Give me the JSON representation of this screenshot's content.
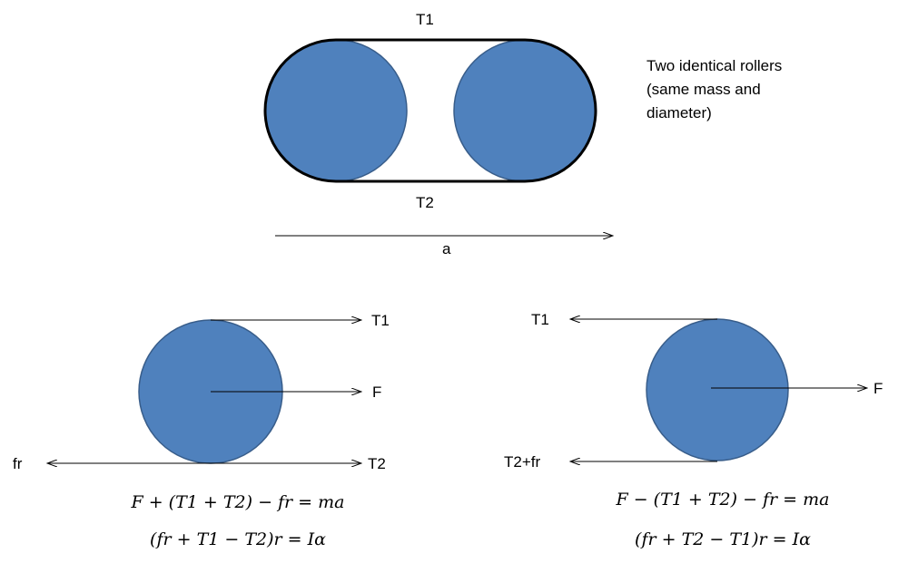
{
  "colors": {
    "roller_fill": "#4f81bd",
    "roller_stroke": "#385d8a",
    "line": "#000000"
  },
  "top_diagram": {
    "belt_top_label": "T1",
    "belt_bottom_label": "T2",
    "acceleration_label": "a",
    "note_lines": [
      "Two identical rollers",
      "(same mass and",
      "diameter)"
    ]
  },
  "left_roller": {
    "top_force": "T1",
    "center_force": "F",
    "bottom_right_force": "T2",
    "bottom_left_force": "fr",
    "equations": [
      "F + (T1 + T2) − fr = ma",
      "(fr + T1 − T2)r = Iα"
    ]
  },
  "right_roller": {
    "top_force": "T1",
    "center_force": "F",
    "bottom_force": "T2+fr",
    "equations": [
      "F − (T1 + T2) − fr = ma",
      "(fr + T2 − T1)r = Iα"
    ]
  }
}
